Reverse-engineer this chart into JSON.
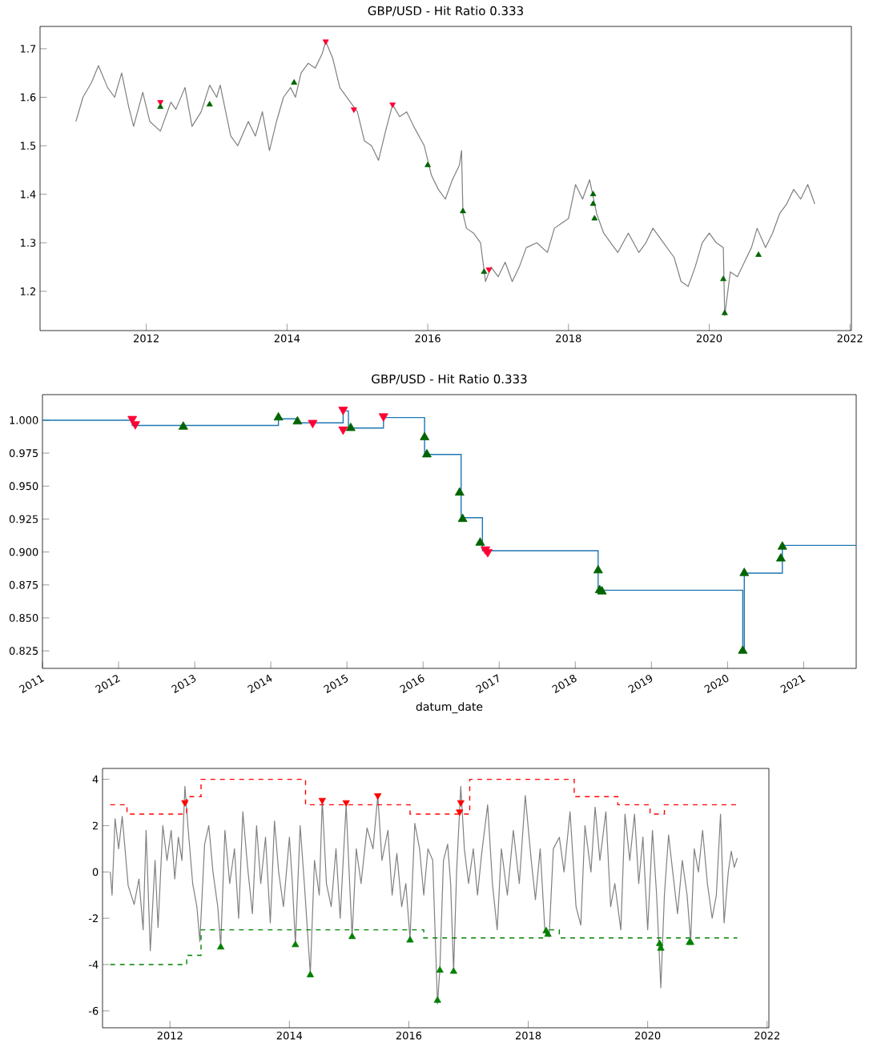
{
  "chart_data": [
    {
      "type": "line",
      "title": "GBP/USD - Hit Ratio 0.333",
      "xlim": [
        2010.49,
        2022.02
      ],
      "ylim": [
        1.119,
        1.746
      ],
      "xticks": [
        2012,
        2014,
        2016,
        2018,
        2020,
        2022
      ],
      "yticks": [
        1.2,
        1.3,
        1.4,
        1.5,
        1.6,
        1.7
      ],
      "grid": false,
      "series": [
        {
          "color": "#808080",
          "x": [
            2011.0,
            2011.1,
            2011.22,
            2011.32,
            2011.45,
            2011.55,
            2011.65,
            2011.75,
            2011.82,
            2011.95,
            2012.05,
            2012.2,
            2012.35,
            2012.42,
            2012.55,
            2012.65,
            2012.78,
            2012.9,
            2013.0,
            2013.05,
            2013.2,
            2013.3,
            2013.45,
            2013.55,
            2013.65,
            2013.75,
            2013.85,
            2013.95,
            2014.05,
            2014.12,
            2014.2,
            2014.3,
            2014.4,
            2014.5,
            2014.55,
            2014.65,
            2014.75,
            2014.9,
            2015.0,
            2015.1,
            2015.2,
            2015.3,
            2015.4,
            2015.5,
            2015.6,
            2015.7,
            2015.8,
            2015.95,
            2016.05,
            2016.15,
            2016.25,
            2016.35,
            2016.45,
            2016.48,
            2016.5,
            2016.55,
            2016.65,
            2016.75,
            2016.82,
            2016.9,
            2017.0,
            2017.1,
            2017.2,
            2017.3,
            2017.4,
            2017.55,
            2017.7,
            2017.8,
            2017.9,
            2018.0,
            2018.1,
            2018.2,
            2018.3,
            2018.4,
            2018.5,
            2018.6,
            2018.7,
            2018.85,
            2019.0,
            2019.1,
            2019.2,
            2019.35,
            2019.5,
            2019.6,
            2019.7,
            2019.8,
            2019.9,
            2020.0,
            2020.1,
            2020.2,
            2020.22,
            2020.3,
            2020.4,
            2020.5,
            2020.6,
            2020.68,
            2020.8,
            2020.9,
            2021.0,
            2021.1,
            2021.2,
            2021.3,
            2021.4,
            2021.5
          ],
          "values": [
            1.55,
            1.6,
            1.63,
            1.665,
            1.62,
            1.6,
            1.65,
            1.58,
            1.54,
            1.61,
            1.55,
            1.53,
            1.59,
            1.575,
            1.62,
            1.54,
            1.57,
            1.625,
            1.6,
            1.625,
            1.52,
            1.5,
            1.55,
            1.52,
            1.57,
            1.49,
            1.55,
            1.6,
            1.62,
            1.6,
            1.65,
            1.67,
            1.66,
            1.69,
            1.715,
            1.68,
            1.62,
            1.59,
            1.57,
            1.51,
            1.5,
            1.47,
            1.53,
            1.585,
            1.56,
            1.57,
            1.54,
            1.5,
            1.44,
            1.41,
            1.39,
            1.43,
            1.46,
            1.49,
            1.36,
            1.33,
            1.32,
            1.3,
            1.22,
            1.25,
            1.23,
            1.26,
            1.22,
            1.25,
            1.29,
            1.3,
            1.28,
            1.33,
            1.34,
            1.35,
            1.42,
            1.39,
            1.43,
            1.36,
            1.32,
            1.3,
            1.28,
            1.32,
            1.28,
            1.3,
            1.33,
            1.3,
            1.27,
            1.22,
            1.21,
            1.25,
            1.3,
            1.32,
            1.3,
            1.29,
            1.15,
            1.24,
            1.23,
            1.26,
            1.29,
            1.33,
            1.29,
            1.32,
            1.36,
            1.38,
            1.41,
            1.39,
            1.42,
            1.38
          ]
        },
        {
          "type": "scatter",
          "marker": "triangle_down",
          "color": "#ff0033",
          "x": [
            2012.2,
            2014.55,
            2014.95,
            2015.5,
            2016.87
          ],
          "values": [
            1.59,
            1.715,
            1.575,
            1.585,
            1.245
          ]
        },
        {
          "type": "scatter",
          "marker": "triangle",
          "color": "#006400",
          "x": [
            2012.2,
            2012.9,
            2014.1,
            2016.0,
            2016.5,
            2016.8,
            2018.35,
            2018.35,
            2018.37,
            2020.2,
            2020.22,
            2020.7
          ],
          "values": [
            1.58,
            1.585,
            1.63,
            1.46,
            1.365,
            1.24,
            1.4,
            1.38,
            1.35,
            1.225,
            1.155,
            1.275
          ]
        }
      ]
    },
    {
      "type": "step",
      "title": "GBP/USD - Hit Ratio 0.333",
      "xlabel": "datum_date",
      "xlim": [
        2011,
        2021.69
      ],
      "ylim": [
        0.8117,
        1.0194
      ],
      "xticks": [
        2011,
        2012,
        2013,
        2014,
        2015,
        2016,
        2017,
        2018,
        2019,
        2020,
        2021
      ],
      "yticks": [
        {
          "value": 0.825,
          "label": "0.825"
        },
        {
          "value": 0.85,
          "label": "0.850"
        },
        {
          "value": 0.875,
          "label": "0.875"
        },
        {
          "value": 0.9,
          "label": "0.900"
        },
        {
          "value": 0.925,
          "label": "0.925"
        },
        {
          "value": 0.95,
          "label": "0.950"
        },
        {
          "value": 0.975,
          "label": "0.975"
        },
        {
          "value": 1.0,
          "label": "1.000"
        }
      ],
      "grid": false,
      "series": [
        {
          "color": "#1f77b4",
          "x": [
            2011.0,
            2012.18,
            2014.1,
            2014.35,
            2014.95,
            2015.02,
            2015.48,
            2016.02,
            2016.5,
            2016.78,
            2018.3,
            2020.2,
            2020.22,
            2020.72,
            2021.69
          ],
          "values": [
            1.0,
            0.996,
            1.001,
            0.998,
            1.007,
            0.994,
            1.002,
            0.974,
            0.926,
            0.901,
            0.871,
            0.825,
            0.884,
            0.905,
            0.905
          ]
        },
        {
          "type": "scatter",
          "marker": "triangle_down",
          "color": "#ff0033",
          "x": [
            2012.18,
            2012.22,
            2014.55,
            2014.95,
            2014.95,
            2015.48,
            2016.82,
            2016.85
          ],
          "values": [
            1.001,
            0.997,
            0.998,
            1.008,
            0.993,
            1.003,
            0.902,
            0.9
          ]
        },
        {
          "type": "scatter",
          "marker": "triangle",
          "color": "#006400",
          "x": [
            2012.85,
            2014.1,
            2014.35,
            2015.05,
            2016.02,
            2016.05,
            2016.48,
            2016.52,
            2016.75,
            2018.3,
            2018.32,
            2018.35,
            2020.2,
            2020.22,
            2020.7,
            2020.72
          ],
          "values": [
            0.995,
            1.002,
            0.999,
            0.994,
            0.987,
            0.974,
            0.945,
            0.925,
            0.907,
            0.886,
            0.871,
            0.87,
            0.825,
            0.884,
            0.895,
            0.904
          ]
        }
      ]
    },
    {
      "type": "line",
      "xlim": [
        2010.87,
        2022.03
      ],
      "ylim": [
        -6.73,
        4.47
      ],
      "xticks": [
        2012,
        2014,
        2016,
        2018,
        2020,
        2022
      ],
      "yticks": [
        -6,
        -4,
        -2,
        0,
        2,
        4
      ],
      "grid": false,
      "series": [
        {
          "color": "#808080",
          "x": [
            2011.0,
            2011.03,
            2011.08,
            2011.14,
            2011.2,
            2011.3,
            2011.4,
            2011.48,
            2011.55,
            2011.6,
            2011.67,
            2011.75,
            2011.8,
            2011.88,
            2011.95,
            2012.02,
            2012.08,
            2012.14,
            2012.2,
            2012.25,
            2012.3,
            2012.38,
            2012.45,
            2012.5,
            2012.58,
            2012.65,
            2012.72,
            2012.8,
            2012.85,
            2012.92,
            2013.0,
            2013.08,
            2013.15,
            2013.22,
            2013.3,
            2013.38,
            2013.45,
            2013.52,
            2013.6,
            2013.68,
            2013.75,
            2013.82,
            2013.9,
            2014.0,
            2014.05,
            2014.1,
            2014.18,
            2014.25,
            2014.35,
            2014.42,
            2014.5,
            2014.55,
            2014.62,
            2014.7,
            2014.78,
            2014.85,
            2014.95,
            2015.0,
            2015.05,
            2015.12,
            2015.2,
            2015.3,
            2015.4,
            2015.48,
            2015.55,
            2015.65,
            2015.72,
            2015.8,
            2015.88,
            2015.95,
            2016.02,
            2016.1,
            2016.18,
            2016.25,
            2016.32,
            2016.4,
            2016.48,
            2016.52,
            2016.58,
            2016.65,
            2016.7,
            2016.75,
            2016.8,
            2016.87,
            2016.93,
            2017.0,
            2017.08,
            2017.15,
            2017.22,
            2017.32,
            2017.4,
            2017.48,
            2017.55,
            2017.65,
            2017.75,
            2017.85,
            2017.95,
            2018.05,
            2018.12,
            2018.2,
            2018.28,
            2018.35,
            2018.42,
            2018.52,
            2018.6,
            2018.7,
            2018.8,
            2018.88,
            2018.95,
            2019.05,
            2019.12,
            2019.2,
            2019.3,
            2019.38,
            2019.45,
            2019.55,
            2019.62,
            2019.7,
            2019.78,
            2019.85,
            2019.92,
            2020.0,
            2020.08,
            2020.15,
            2020.22,
            2020.28,
            2020.35,
            2020.42,
            2020.5,
            2020.58,
            2020.66,
            2020.72,
            2020.78,
            2020.85,
            2020.92,
            2021.0,
            2021.08,
            2021.15,
            2021.22,
            2021.28,
            2021.35,
            2021.4,
            2021.45,
            2021.5
          ],
          "values": [
            0.0,
            -1.0,
            2.3,
            1.0,
            2.4,
            -0.6,
            -1.4,
            -0.3,
            -2.5,
            1.8,
            -3.4,
            0.5,
            -2.4,
            2.0,
            0.5,
            1.8,
            -0.3,
            1.5,
            0.5,
            3.7,
            2.0,
            -0.5,
            -1.5,
            -3.0,
            1.2,
            2.0,
            0.0,
            -1.5,
            -3.2,
            1.8,
            -0.5,
            1.0,
            -2.0,
            2.6,
            0.2,
            -1.8,
            2.0,
            -0.5,
            1.5,
            -2.2,
            2.2,
            0.0,
            -1.5,
            1.5,
            -0.5,
            -3.1,
            2.0,
            -0.5,
            -4.4,
            0.5,
            -1.0,
            3.1,
            -0.5,
            -1.5,
            1.0,
            -2.0,
            2.9,
            0.0,
            -2.8,
            1.0,
            -0.5,
            1.9,
            1.0,
            3.3,
            0.5,
            1.8,
            -1.0,
            0.8,
            -1.5,
            -0.5,
            -2.9,
            2.1,
            1.0,
            -1.0,
            1.0,
            0.5,
            -5.7,
            -4.2,
            0.5,
            1.2,
            -0.5,
            -4.3,
            0.0,
            3.7,
            1.0,
            -0.5,
            1.0,
            -1.0,
            0.8,
            2.9,
            -0.5,
            -2.5,
            1.0,
            -1.0,
            1.8,
            -0.5,
            3.3,
            0.5,
            -1.2,
            1.0,
            -2.6,
            -2.8,
            1.0,
            1.5,
            0.0,
            2.6,
            -1.5,
            -2.3,
            2.0,
            0.0,
            2.8,
            0.5,
            2.6,
            -1.5,
            -0.5,
            -2.5,
            2.5,
            0.5,
            2.5,
            -0.5,
            1.5,
            -2.5,
            1.8,
            -1.0,
            -5.0,
            -1.0,
            1.6,
            0.0,
            -1.8,
            0.5,
            -1.0,
            -3.0,
            1.0,
            0.0,
            1.8,
            -0.5,
            -2.0,
            -1.0,
            2.5,
            -2.2,
            0.0,
            0.9,
            0.2,
            0.6
          ]
        },
        {
          "type": "step",
          "line_style": "dashed",
          "color": "#ff0000",
          "x": [
            2011.0,
            2011.28,
            2012.28,
            2012.52,
            2014.27,
            2016.02,
            2017.02,
            2018.77,
            2019.5,
            2020.04,
            2020.28,
            2021.5
          ],
          "values": [
            2.9,
            2.5,
            3.25,
            4.0,
            2.9,
            2.5,
            4.0,
            3.25,
            2.9,
            2.5,
            2.9,
            2.9
          ]
        },
        {
          "type": "step",
          "line_style": "dashed",
          "color": "#008000",
          "x": [
            2011.0,
            2012.28,
            2012.52,
            2016.25,
            2018.3,
            2018.52,
            2021.5
          ],
          "values": [
            -4.0,
            -3.6,
            -2.5,
            -2.85,
            -2.5,
            -2.85,
            -2.85
          ]
        },
        {
          "type": "scatter",
          "marker": "triangle_down",
          "color": "#ff0000",
          "x": [
            2012.25,
            2014.55,
            2014.95,
            2015.48,
            2016.87,
            2016.85
          ],
          "values": [
            3.0,
            3.1,
            3.0,
            3.3,
            3.0,
            2.6
          ]
        },
        {
          "type": "scatter",
          "marker": "triangle",
          "color": "#008000",
          "x": [
            2012.85,
            2014.1,
            2014.35,
            2015.05,
            2016.02,
            2016.48,
            2016.52,
            2016.75,
            2018.3,
            2018.33,
            2020.2,
            2020.22,
            2020.7,
            2020.72
          ],
          "values": [
            -3.25,
            -3.15,
            -4.45,
            -2.8,
            -2.95,
            -5.55,
            -4.25,
            -4.3,
            -2.55,
            -2.7,
            -3.1,
            -3.3,
            -3.05,
            -3.05
          ]
        }
      ]
    }
  ]
}
